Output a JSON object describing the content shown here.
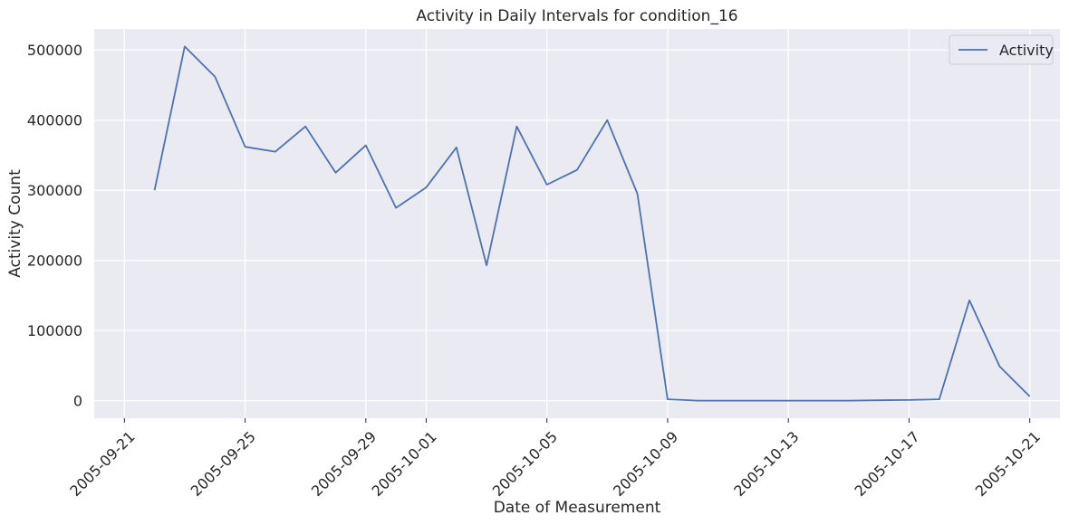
{
  "chart_data": {
    "type": "line",
    "title": "Activity in Daily Intervals for condition_16",
    "xlabel": "Date of Measurement",
    "ylabel": "Activity Count",
    "grid": true,
    "legend_position": "top-right",
    "colors": {
      "plot_background": "#eaeaf2",
      "grid": "#ffffff",
      "line": "#4c72b0",
      "text": "#262626"
    },
    "x_tick_labels": [
      "2005-09-21",
      "2005-09-25",
      "2005-09-29",
      "2005-10-01",
      "2005-10-05",
      "2005-10-09",
      "2005-10-13",
      "2005-10-17",
      "2005-10-21"
    ],
    "y_ticks": [
      0,
      100000,
      200000,
      300000,
      400000,
      500000
    ],
    "ylim": [
      -25000,
      530000
    ],
    "xlim": [
      "2005-09-20",
      "2005-10-22"
    ],
    "series": [
      {
        "name": "Activity",
        "x": [
          "2005-09-22",
          "2005-09-23",
          "2005-09-24",
          "2005-09-25",
          "2005-09-26",
          "2005-09-27",
          "2005-09-28",
          "2005-09-29",
          "2005-09-30",
          "2005-10-01",
          "2005-10-02",
          "2005-10-03",
          "2005-10-04",
          "2005-10-05",
          "2005-10-06",
          "2005-10-07",
          "2005-10-08",
          "2005-10-09",
          "2005-10-10",
          "2005-10-11",
          "2005-10-12",
          "2005-10-13",
          "2005-10-14",
          "2005-10-15",
          "2005-10-16",
          "2005-10-17",
          "2005-10-18",
          "2005-10-19",
          "2005-10-20",
          "2005-10-21"
        ],
        "values": [
          300000,
          505000,
          462000,
          362000,
          355000,
          391000,
          325000,
          364000,
          275000,
          304000,
          361000,
          193000,
          391000,
          308000,
          329000,
          400000,
          295000,
          2000,
          0,
          0,
          0,
          0,
          0,
          0,
          500,
          1000,
          2000,
          143000,
          49000,
          6000
        ]
      }
    ]
  }
}
